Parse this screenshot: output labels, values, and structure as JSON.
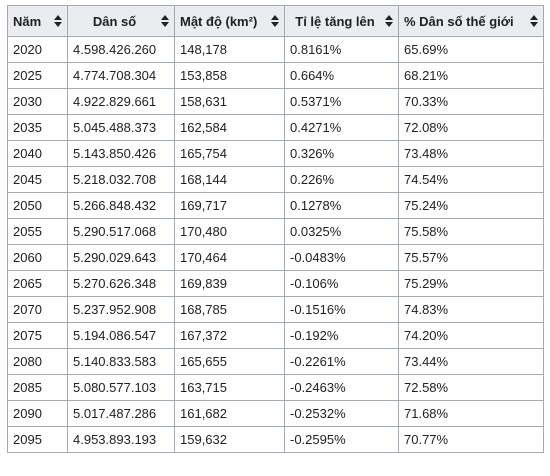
{
  "table": {
    "headers": [
      "Năm",
      "Dân số",
      "Mật độ (km²)",
      "Tỉ lệ tăng lên",
      "% Dân số thế giới"
    ],
    "sort_icon": "sort-arrows-icon",
    "rows": [
      [
        "2020",
        "4.598.426.260",
        "148,178",
        "0.8161%",
        "65.69%"
      ],
      [
        "2025",
        "4.774.708.304",
        "153,858",
        "0.664%",
        "68.21%"
      ],
      [
        "2030",
        "4.922.829.661",
        "158,631",
        "0.5371%",
        "70.33%"
      ],
      [
        "2035",
        "5.045.488.373",
        "162,584",
        "0.4271%",
        "72.08%"
      ],
      [
        "2040",
        "5.143.850.426",
        "165,754",
        "0.326%",
        "73.48%"
      ],
      [
        "2045",
        "5.218.032.708",
        "168,144",
        "0.226%",
        "74.54%"
      ],
      [
        "2050",
        "5.266.848.432",
        "169,717",
        "0.1278%",
        "75.24%"
      ],
      [
        "2055",
        "5.290.517.068",
        "170,480",
        "0.0325%",
        "75.58%"
      ],
      [
        "2060",
        "5.290.029.643",
        "170,464",
        "-0.0483%",
        "75.57%"
      ],
      [
        "2065",
        "5.270.626.348",
        "169,839",
        "-0.106%",
        "75.29%"
      ],
      [
        "2070",
        "5.237.952.908",
        "168,785",
        "-0.1516%",
        "74.83%"
      ],
      [
        "2075",
        "5.194.086.547",
        "167,372",
        "-0.192%",
        "74.20%"
      ],
      [
        "2080",
        "5.140.833.583",
        "165,655",
        "-0.2261%",
        "73.44%"
      ],
      [
        "2085",
        "5.080.577.103",
        "163,715",
        "-0.2463%",
        "72.58%"
      ],
      [
        "2090",
        "5.017.487.286",
        "161,682",
        "-0.2532%",
        "71.68%"
      ],
      [
        "2095",
        "4.953.893.193",
        "159,632",
        "-0.2595%",
        "70.77%"
      ]
    ]
  }
}
